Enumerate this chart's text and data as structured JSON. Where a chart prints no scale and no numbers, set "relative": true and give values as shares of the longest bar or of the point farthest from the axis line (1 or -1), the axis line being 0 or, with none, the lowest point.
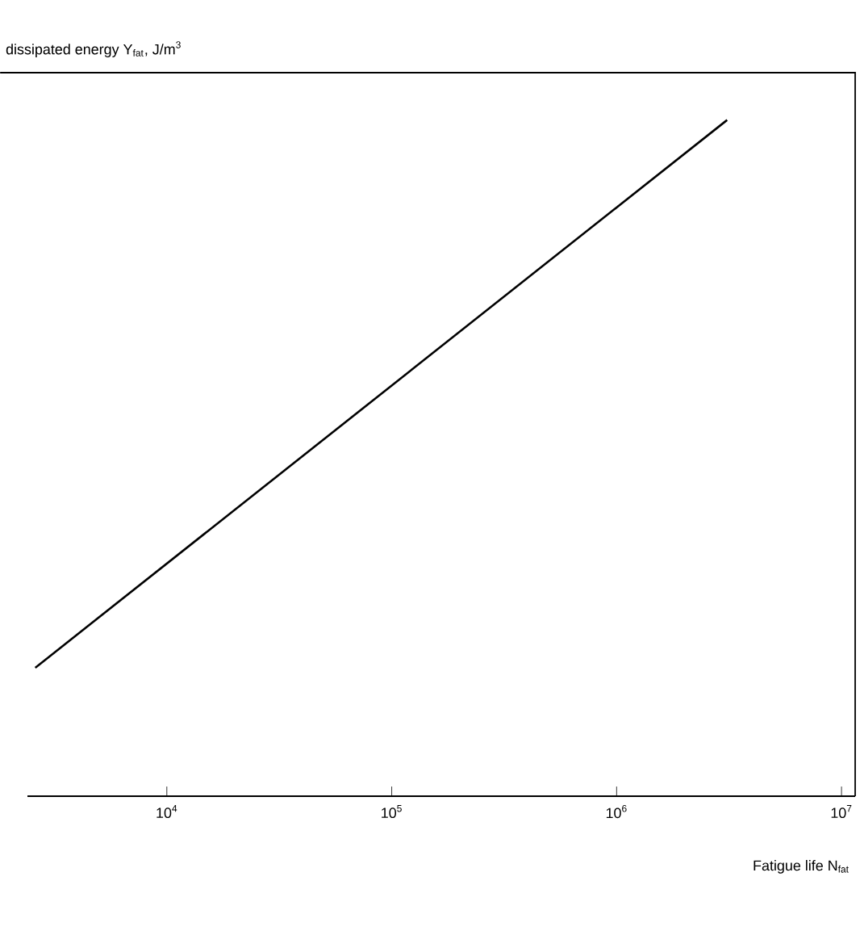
{
  "chart_data": {
    "type": "line",
    "relative": true,
    "log": "x",
    "ylabel": "dissipated energy Y$_{fat}$, J/m$^{3}$",
    "xlabel": "Fatigue life  N$_{fat}$",
    "xlim": [
      2400,
      11500000
    ],
    "xticks": [
      {
        "value": 10000,
        "label": "10$^{4}$"
      },
      {
        "value": 100000,
        "label": "10$^{5}$"
      },
      {
        "value": 1000000,
        "label": "10$^{6}$"
      },
      {
        "value": 10000000,
        "label": "10$^{7}$"
      }
    ],
    "x": [
      2600,
      3100000
    ],
    "series": [
      {
        "color": "#000000",
        "values": [
          0.19,
          1
        ]
      }
    ],
    "marker": "none",
    "line_style": "solid"
  }
}
